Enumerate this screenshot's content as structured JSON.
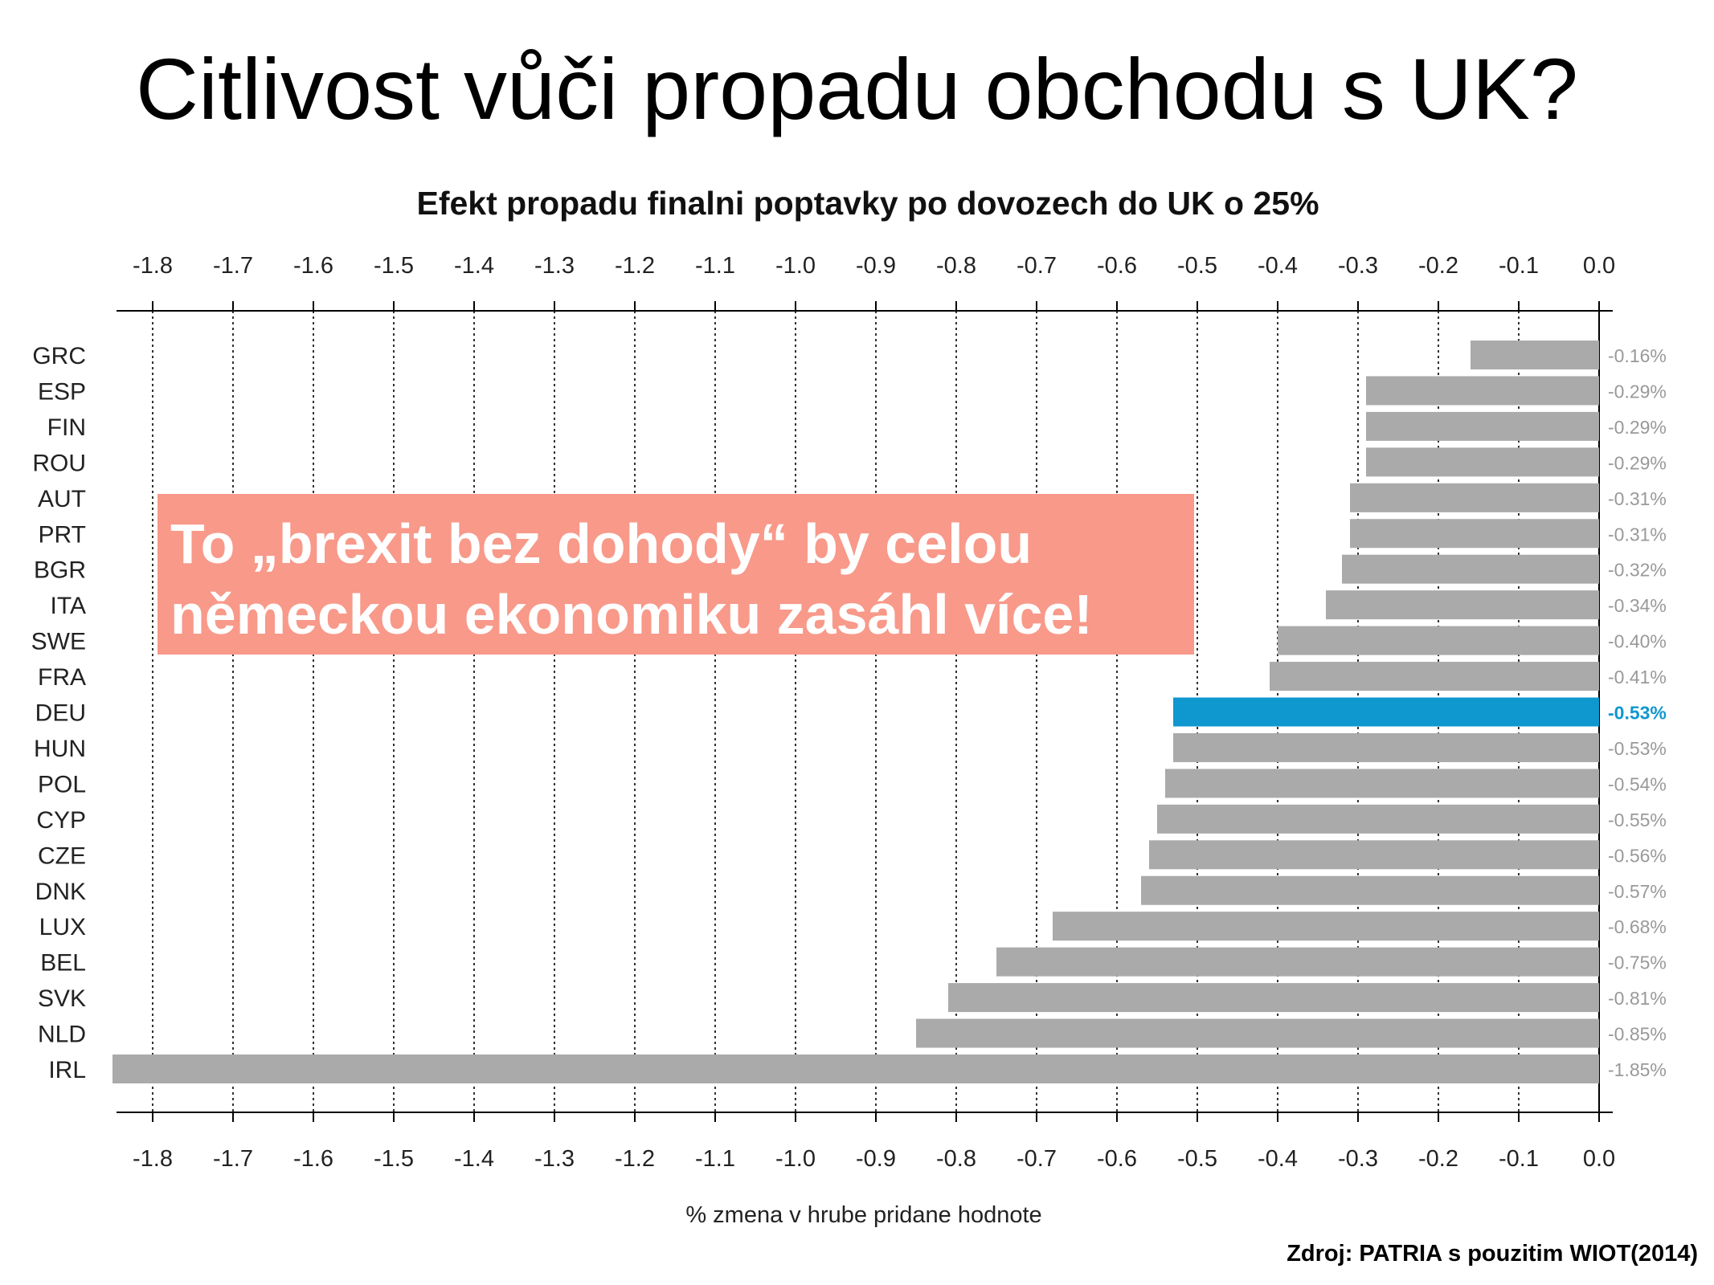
{
  "page": {
    "title": "Citlivost vůči propadu obchodu s UK?",
    "callout_line1": "To „brexit bez dohody“ by celou",
    "callout_line2": "německou ekonomiku zasáhl více!",
    "source": "Zdroj: PATRIA s pouzitim WIOT(2014)"
  },
  "chart_data": {
    "type": "bar",
    "orientation": "horizontal",
    "title": "Efekt propadu finalni poptavky po dovozech do UK o 25%",
    "xlabel": "% zmena v hrube pridane hodnote",
    "ylabel": "",
    "xlim": [
      -1.85,
      0.0
    ],
    "xticks": [
      -1.8,
      -1.7,
      -1.6,
      -1.5,
      -1.4,
      -1.3,
      -1.2,
      -1.1,
      -1.0,
      -0.9,
      -0.8,
      -0.7,
      -0.6,
      -0.5,
      -0.4,
      -0.3,
      -0.2,
      -0.1,
      0.0
    ],
    "xtick_labels": [
      "-1.8",
      "-1.7",
      "-1.6",
      "-1.5",
      "-1.4",
      "-1.3",
      "-1.2",
      "-1.1",
      "-1.0",
      "-0.9",
      "-0.8",
      "-0.7",
      "-0.6",
      "-0.5",
      "-0.4",
      "-0.3",
      "-0.2",
      "-0.1",
      "0.0"
    ],
    "grid": "vertical dotted",
    "categories": [
      "GRC",
      "ESP",
      "FIN",
      "ROU",
      "AUT",
      "PRT",
      "BGR",
      "ITA",
      "SWE",
      "FRA",
      "DEU",
      "HUN",
      "POL",
      "CYP",
      "CZE",
      "DNK",
      "LUX",
      "BEL",
      "SVK",
      "NLD",
      "IRL"
    ],
    "values": [
      -0.16,
      -0.29,
      -0.29,
      -0.29,
      -0.31,
      -0.31,
      -0.32,
      -0.34,
      -0.4,
      -0.41,
      -0.53,
      -0.53,
      -0.54,
      -0.55,
      -0.56,
      -0.57,
      -0.68,
      -0.75,
      -0.81,
      -0.85,
      -1.85
    ],
    "value_labels": [
      "-0.16%",
      "-0.29%",
      "-0.29%",
      "-0.29%",
      "-0.31%",
      "-0.31%",
      "-0.32%",
      "-0.34%",
      "-0.40%",
      "-0.41%",
      "-0.53%",
      "-0.53%",
      "-0.54%",
      "-0.55%",
      "-0.56%",
      "-0.57%",
      "-0.68%",
      "-0.75%",
      "-0.81%",
      "-0.85%",
      "-1.85%"
    ],
    "highlight": "DEU",
    "colors": {
      "bar": "#aaaaaa",
      "highlight": "#0f97cf",
      "label": "#999999",
      "highlight_label": "#0f97cf"
    }
  }
}
